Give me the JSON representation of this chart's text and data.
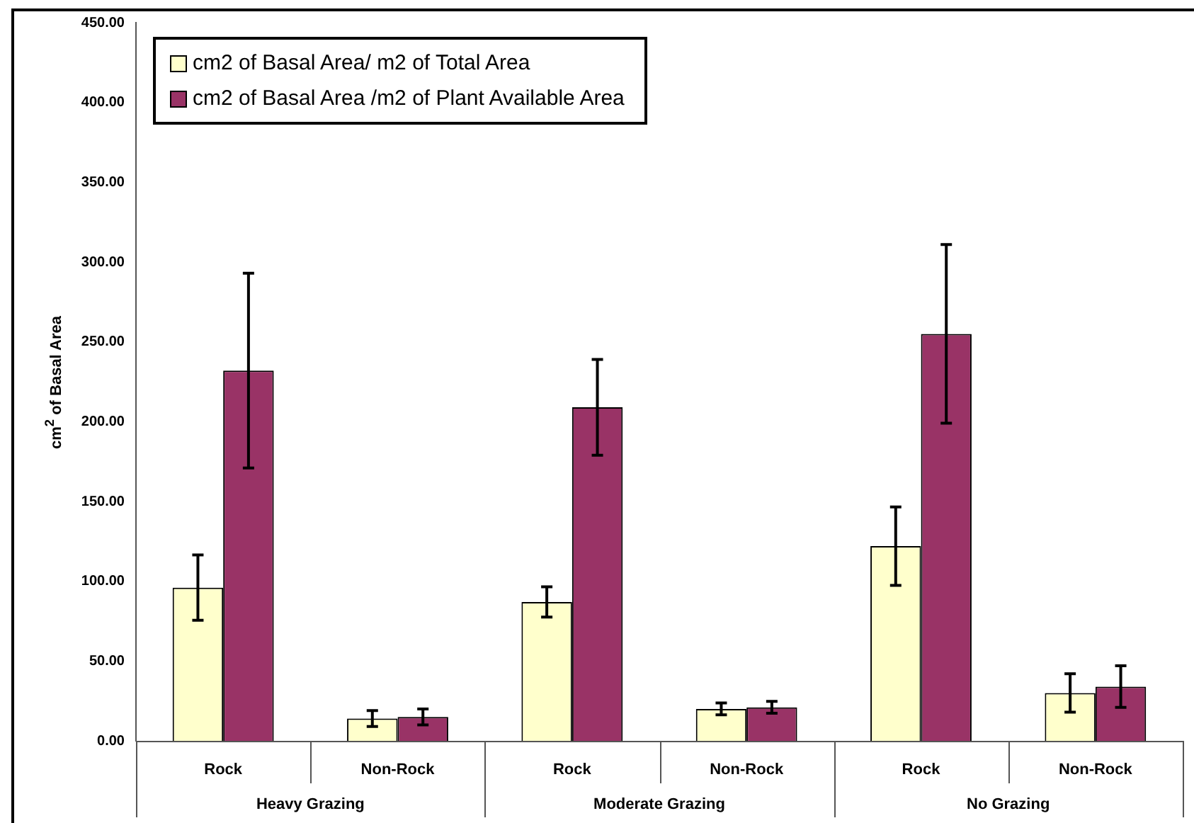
{
  "chart_data": {
    "type": "bar",
    "ylabel": "cm$^{2}$ of Basal Area",
    "categories": [
      "Rock",
      "Non-Rock",
      "Rock",
      "Non-Rock",
      "Rock",
      "Non-Rock"
    ],
    "annotations": [
      "Heavy Grazing",
      "Moderate Grazing",
      "No Grazing"
    ],
    "series": [
      {
        "name": "cm2 of Basal Area/ m2 of Total Area",
        "color": "#ffffcc",
        "values": [
          96,
          14,
          87,
          20,
          122,
          30
        ],
        "errors": [
          20.5,
          5,
          9.5,
          3.7,
          24.6,
          12
        ]
      },
      {
        "name": "cm2 of Basal Area /m2 of Plant Available Area",
        "color": "#993366",
        "values": [
          232,
          15,
          209,
          21,
          255,
          34
        ],
        "errors": [
          61,
          5,
          30,
          3.7,
          56,
          13
        ]
      }
    ],
    "ylim": [
      0,
      450
    ],
    "yticks": [
      {
        "value": 0,
        "label": "0.00"
      },
      {
        "value": 50,
        "label": "50.00"
      },
      {
        "value": 100,
        "label": "100.00"
      },
      {
        "value": 150,
        "label": "150.00"
      },
      {
        "value": 200,
        "label": "200.00"
      },
      {
        "value": 250,
        "label": "250.00"
      },
      {
        "value": 300,
        "label": "300.00"
      },
      {
        "value": 350,
        "label": "350.00"
      },
      {
        "value": 400,
        "label": "400.00"
      },
      {
        "value": 450,
        "label": "450.00"
      }
    ],
    "grid": false,
    "legend": "top left"
  }
}
